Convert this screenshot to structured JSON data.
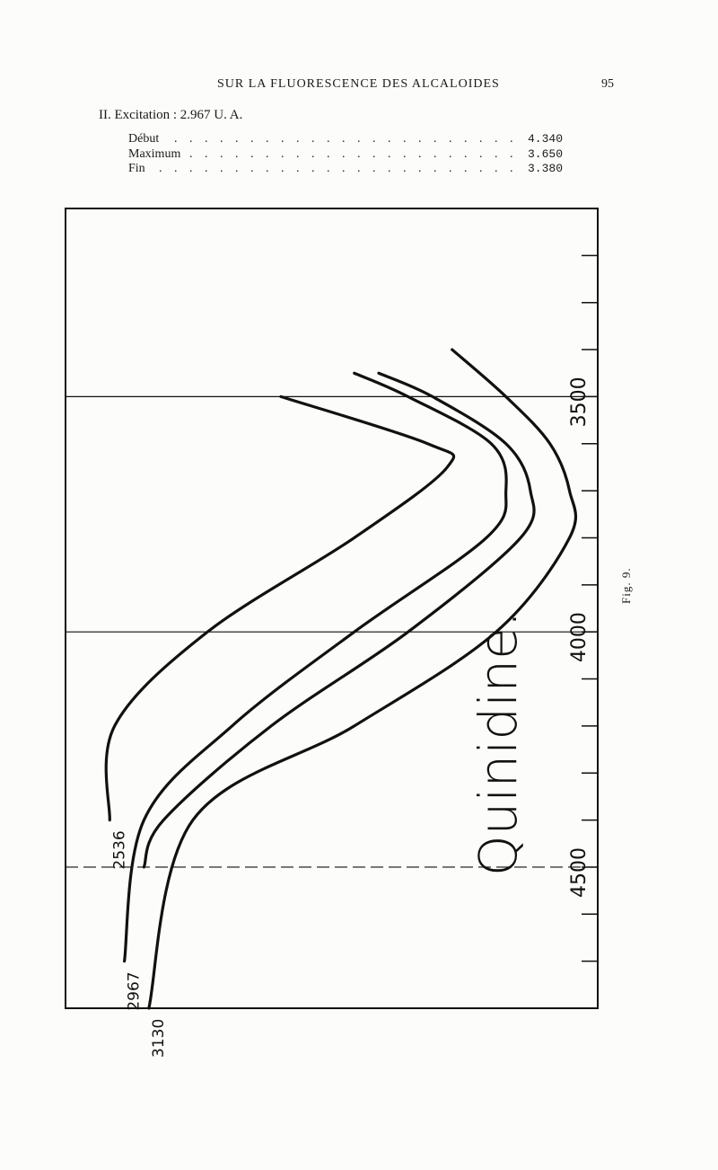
{
  "header": {
    "running_title": "SUR LA FLUORESCENCE DES ALCALOIDES",
    "page_number": "95"
  },
  "excitation": {
    "label": "II. Excitation : 2.967 U. A."
  },
  "table": [
    {
      "label": "Début",
      "value": "4.340"
    },
    {
      "label": "Maximum",
      "value": "3.650"
    },
    {
      "label": "Fin",
      "value": "3.380"
    }
  ],
  "figure": {
    "caption": "Fig. 9.",
    "compound": "Quinidine."
  },
  "chart_data": {
    "type": "line",
    "title": "Quinidine.",
    "axis_labels": [
      "3500",
      "4000",
      "4500"
    ],
    "axis_min": 3100,
    "axis_max": 4800,
    "tick_step": 100,
    "series": [
      {
        "name": "2536",
        "points": [
          [
            3500,
            0.4
          ],
          [
            3600,
            0.7
          ],
          [
            3650,
            0.74
          ],
          [
            3800,
            0.55
          ],
          [
            4000,
            0.25
          ],
          [
            4200,
            0.06
          ],
          [
            4400,
            0.05
          ]
        ]
      },
      {
        "name": "2967",
        "points": [
          [
            3450,
            0.55
          ],
          [
            3500,
            0.66
          ],
          [
            3600,
            0.83
          ],
          [
            3700,
            0.86
          ],
          [
            3800,
            0.82
          ],
          [
            4000,
            0.55
          ],
          [
            4200,
            0.3
          ],
          [
            4400,
            0.12
          ],
          [
            4700,
            0.08
          ]
        ]
      },
      {
        "name": "",
        "points": [
          [
            3450,
            0.6
          ],
          [
            3500,
            0.71
          ],
          [
            3600,
            0.86
          ],
          [
            3700,
            0.91
          ],
          [
            3800,
            0.89
          ],
          [
            4000,
            0.66
          ],
          [
            4200,
            0.38
          ],
          [
            4400,
            0.16
          ],
          [
            4500,
            0.12
          ]
        ]
      },
      {
        "name": "3130",
        "points": [
          [
            3400,
            0.75
          ],
          [
            3500,
            0.86
          ],
          [
            3600,
            0.95
          ],
          [
            3700,
            0.99
          ],
          [
            3800,
            0.99
          ],
          [
            4000,
            0.84
          ],
          [
            4200,
            0.55
          ],
          [
            4400,
            0.22
          ],
          [
            4800,
            0.13
          ]
        ]
      }
    ]
  }
}
